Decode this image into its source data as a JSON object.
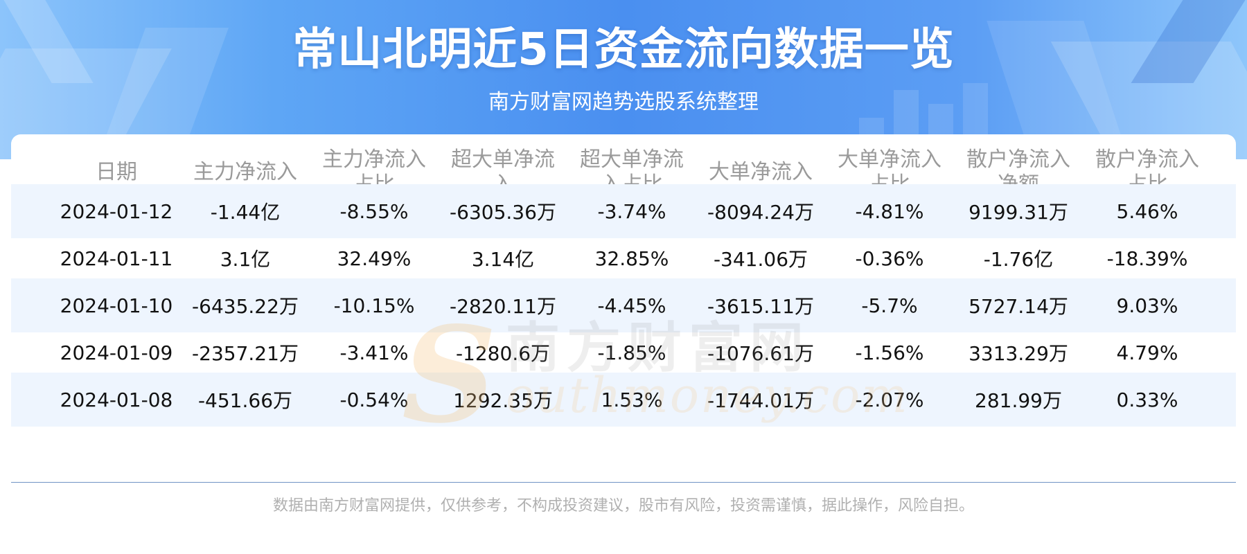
{
  "header": {
    "title": "常山北明近5日资金流向数据一览",
    "subtitle": "南方财富网趋势选股系统整理"
  },
  "table": {
    "columns": [
      "日期",
      "主力净流入",
      "主力净流入\n占比",
      "超大单净流\n入",
      "超大单净流\n入占比",
      "大单净流入",
      "大单净流入\n占比",
      "散户净流入\n净额",
      "散户净流入\n占比"
    ],
    "rows": [
      [
        "2024-01-12",
        "-1.44亿",
        "-8.55%",
        "-6305.36万",
        "-3.74%",
        "-8094.24万",
        "-4.81%",
        "9199.31万",
        "5.46%"
      ],
      [
        "2024-01-11",
        "3.1亿",
        "32.49%",
        "3.14亿",
        "32.85%",
        "-341.06万",
        "-0.36%",
        "-1.76亿",
        "-18.39%"
      ],
      [
        "2024-01-10",
        "-6435.22万",
        "-10.15%",
        "-2820.11万",
        "-4.45%",
        "-3615.11万",
        "-5.7%",
        "5727.14万",
        "9.03%"
      ],
      [
        "2024-01-09",
        "-2357.21万",
        "-3.41%",
        "-1280.6万",
        "-1.85%",
        "-1076.61万",
        "-1.56%",
        "3313.29万",
        "4.79%"
      ],
      [
        "2024-01-08",
        "-451.66万",
        "-0.54%",
        "1292.35万",
        "1.53%",
        "-1744.01万",
        "-2.07%",
        "281.99万",
        "0.33%"
      ]
    ]
  },
  "watermark": {
    "cn": "南方财富网",
    "en": "Southmoney.com"
  },
  "footer": {
    "disclaimer": "数据由南方财富网提供，仅供参考，不构成投资建议，股市有风险，投资需谨慎，据此操作，风险自担。"
  },
  "colors": {
    "banner_blue": "#4a8ff0",
    "row_shade": "#eef5fe",
    "header_text": "#9a9a9a"
  }
}
